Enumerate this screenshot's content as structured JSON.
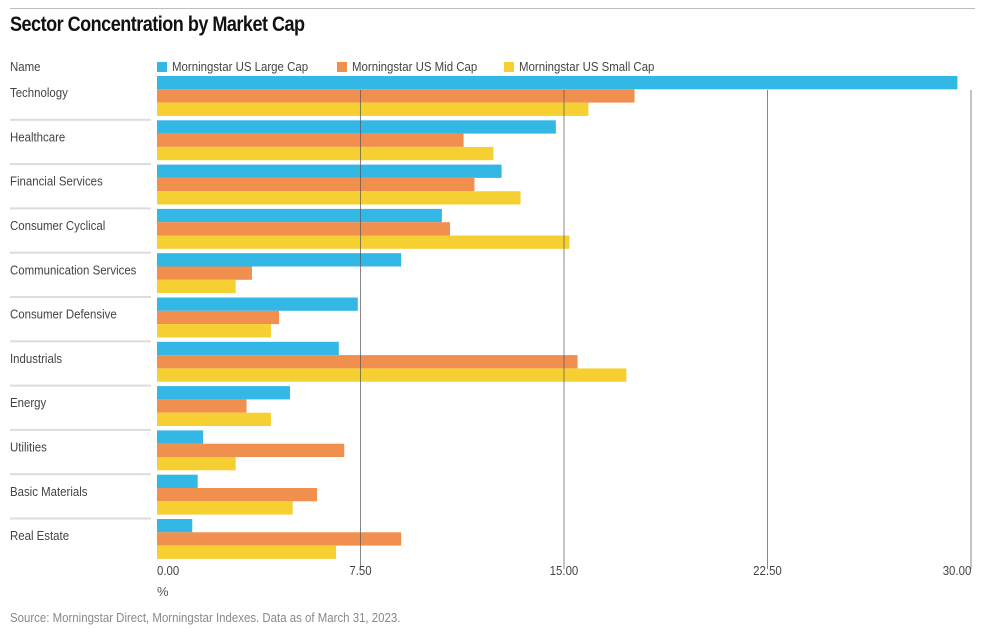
{
  "title": "Sector Concentration by Market Cap",
  "name_header": "Name",
  "source": "Source: Morningstar Direct, Morningstar Indexes. Data as of March 31, 2023.",
  "chart_data": {
    "type": "bar",
    "orientation": "horizontal",
    "title": "Sector Concentration by Market Cap",
    "xlabel": "%",
    "ylabel": "Name",
    "xlim": [
      0,
      30
    ],
    "xticks": [
      0,
      7.5,
      15,
      22.5,
      30
    ],
    "xtick_labels": [
      "0.00",
      "7.50",
      "15.00",
      "22.50",
      "30.00"
    ],
    "grid": true,
    "legend_position": "top",
    "categories": [
      "Technology",
      "Healthcare",
      "Financial Services",
      "Consumer Cyclical",
      "Communication Services",
      "Consumer Defensive",
      "Industrials",
      "Energy",
      "Utilities",
      "Basic Materials",
      "Real Estate"
    ],
    "series": [
      {
        "name": "Morningstar US Large Cap",
        "color": "#33b8e6",
        "values": [
          29.5,
          14.7,
          12.7,
          10.5,
          9.0,
          7.4,
          6.7,
          4.9,
          1.7,
          1.5,
          1.3
        ]
      },
      {
        "name": "Morningstar US Mid Cap",
        "color": "#f08f4e",
        "values": [
          17.6,
          11.3,
          11.7,
          10.8,
          3.5,
          4.5,
          15.5,
          3.3,
          6.9,
          5.9,
          9.0
        ]
      },
      {
        "name": "Morningstar US Small Cap",
        "color": "#f6d033",
        "values": [
          15.9,
          12.4,
          13.4,
          15.2,
          2.9,
          4.2,
          17.3,
          4.2,
          2.9,
          5.0,
          6.6
        ]
      }
    ]
  }
}
